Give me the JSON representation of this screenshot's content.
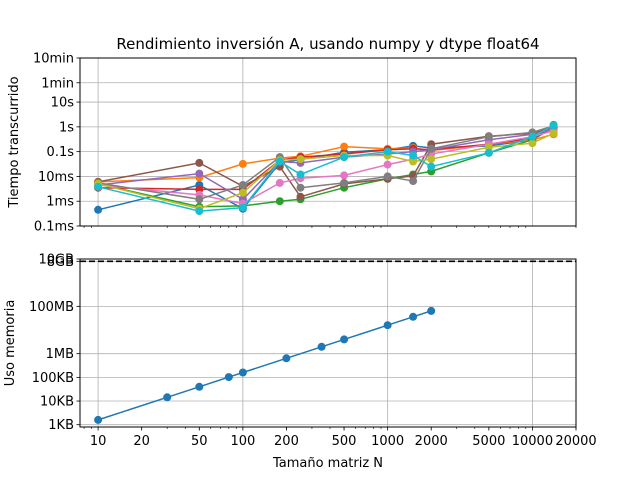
{
  "chart_data": [
    {
      "type": "line",
      "title": "Rendimiento inversión A, usando numpy y dtype float64",
      "xlabel": "",
      "ylabel": "Tiempo transcurrido",
      "xscale": "log",
      "yscale": "log",
      "xlim": [
        7.5,
        20000
      ],
      "ylim": [
        0.0001,
        600
      ],
      "grid": true,
      "yticks": [
        {
          "value": 0.0001,
          "label": "0.1ms"
        },
        {
          "value": 0.001,
          "label": "1ms"
        },
        {
          "value": 0.01,
          "label": "10ms"
        },
        {
          "value": 0.1,
          "label": "0.1s"
        },
        {
          "value": 1,
          "label": "1s"
        },
        {
          "value": 10,
          "label": "10s"
        },
        {
          "value": 60,
          "label": "1min"
        },
        {
          "value": 600,
          "label": "10min"
        }
      ],
      "series": [
        {
          "color": "#1f77b4",
          "x": [
            10,
            50,
            100,
            180,
            250,
            500,
            1000,
            1500,
            2000,
            5000,
            10000,
            14000
          ],
          "y": [
            0.00045,
            0.0045,
            0.0005,
            0.035,
            0.048,
            0.095,
            0.12,
            0.17,
            0.14,
            0.17,
            0.3,
            0.95
          ]
        },
        {
          "color": "#ff7f0e",
          "x": [
            10,
            50,
            100,
            180,
            250,
            500,
            1000,
            1500,
            2000,
            5000,
            10000,
            14000
          ],
          "y": [
            0.006,
            0.009,
            0.032,
            0.055,
            0.065,
            0.16,
            0.13,
            0.14,
            0.11,
            0.2,
            0.3,
            0.5
          ]
        },
        {
          "color": "#2ca02c",
          "x": [
            10,
            50,
            100,
            180,
            250,
            500,
            1000,
            1500,
            2000,
            5000,
            10000,
            14000
          ],
          "y": [
            0.005,
            0.0006,
            0.00065,
            0.001,
            0.0012,
            0.0035,
            0.008,
            0.012,
            0.016,
            0.09,
            0.3,
            1.2
          ]
        },
        {
          "color": "#d62728",
          "x": [
            10,
            50,
            100,
            180,
            250,
            500,
            1000,
            1500,
            2000,
            5000,
            10000,
            14000
          ],
          "y": [
            0.0035,
            0.003,
            0.003,
            0.045,
            0.06,
            0.08,
            0.12,
            0.13,
            0.12,
            0.2,
            0.35,
            0.9
          ]
        },
        {
          "color": "#9467bd",
          "x": [
            10,
            50,
            100,
            180,
            250,
            500,
            1000,
            1500,
            2000,
            5000,
            10000,
            14000
          ],
          "y": [
            0.0045,
            0.013,
            0.0012,
            0.04,
            0.035,
            0.06,
            0.08,
            0.1,
            0.12,
            0.3,
            0.5,
            0.8
          ]
        },
        {
          "color": "#8c564b",
          "x": [
            10,
            50,
            100,
            180,
            250,
            500,
            1000,
            1500,
            2000,
            5000,
            10000,
            14000
          ],
          "y": [
            0.006,
            0.035,
            0.004,
            0.025,
            0.0015,
            0.005,
            0.008,
            0.0105,
            0.2,
            0.42,
            0.55,
            1.0
          ]
        },
        {
          "color": "#e377c2",
          "x": [
            10,
            50,
            100,
            180,
            250,
            500,
            1000,
            1500,
            2000,
            5000,
            10000,
            14000
          ],
          "y": [
            0.0045,
            0.0018,
            0.0008,
            0.0055,
            0.0085,
            0.011,
            0.03,
            0.05,
            0.08,
            0.2,
            0.4,
            0.7
          ]
        },
        {
          "color": "#7f7f7f",
          "x": [
            10,
            50,
            100,
            180,
            250,
            500,
            1000,
            1500,
            2000,
            5000,
            10000,
            14000
          ],
          "y": [
            0.0055,
            0.0012,
            0.0045,
            0.06,
            0.0035,
            0.0055,
            0.01,
            0.0065,
            0.13,
            0.4,
            0.6,
            1.1
          ]
        },
        {
          "color": "#bcbd22",
          "x": [
            10,
            50,
            100,
            180,
            250,
            500,
            1000,
            1500,
            2000,
            5000,
            10000,
            14000
          ],
          "y": [
            0.005,
            0.0005,
            0.0022,
            0.045,
            0.05,
            0.07,
            0.07,
            0.04,
            0.05,
            0.15,
            0.22,
            0.55
          ]
        },
        {
          "color": "#17becf",
          "x": [
            10,
            50,
            100,
            180,
            250,
            500,
            1000,
            1500,
            2000,
            5000,
            10000,
            14000
          ],
          "y": [
            0.0038,
            0.0004,
            0.00055,
            0.04,
            0.012,
            0.06,
            0.1,
            0.07,
            0.025,
            0.09,
            0.4,
            1.15
          ]
        }
      ]
    },
    {
      "type": "line",
      "title": "",
      "xlabel": "Tamaño matriz N",
      "ylabel": "Uso memoria",
      "xscale": "log",
      "yscale": "log",
      "xlim": [
        7.5,
        20000
      ],
      "ylim": [
        800,
        10000000000
      ],
      "grid": true,
      "xticks": [
        {
          "value": 10,
          "label": "10"
        },
        {
          "value": 20,
          "label": "20"
        },
        {
          "value": 50,
          "label": "50"
        },
        {
          "value": 100,
          "label": "100"
        },
        {
          "value": 200,
          "label": "200"
        },
        {
          "value": 500,
          "label": "500"
        },
        {
          "value": 1000,
          "label": "1000"
        },
        {
          "value": 2000,
          "label": "2000"
        },
        {
          "value": 5000,
          "label": "5000"
        },
        {
          "value": 10000,
          "label": "10000"
        },
        {
          "value": 20000,
          "label": "20000"
        }
      ],
      "yticks": [
        {
          "value": 1000,
          "label": "1KB"
        },
        {
          "value": 10000,
          "label": "10KB"
        },
        {
          "value": 100000,
          "label": "100KB"
        },
        {
          "value": 1000000,
          "label": "1MB"
        },
        {
          "value": 100000000,
          "label": "100MB"
        },
        {
          "value": 8000000000,
          "label": "8GB"
        },
        {
          "value": 10000000000,
          "label": "10GB"
        }
      ],
      "reference_line": {
        "value": 8000000000,
        "style": "dashed",
        "color": "#000000"
      },
      "series": [
        {
          "color": "#1f77b4",
          "x": [
            10,
            30,
            50,
            80,
            100,
            200,
            350,
            500,
            1000,
            1500,
            2000
          ],
          "y": [
            1600,
            14400,
            40000,
            102400,
            160000,
            640000,
            1960000,
            4000000,
            16000000,
            36000000,
            64000000
          ]
        }
      ]
    }
  ]
}
